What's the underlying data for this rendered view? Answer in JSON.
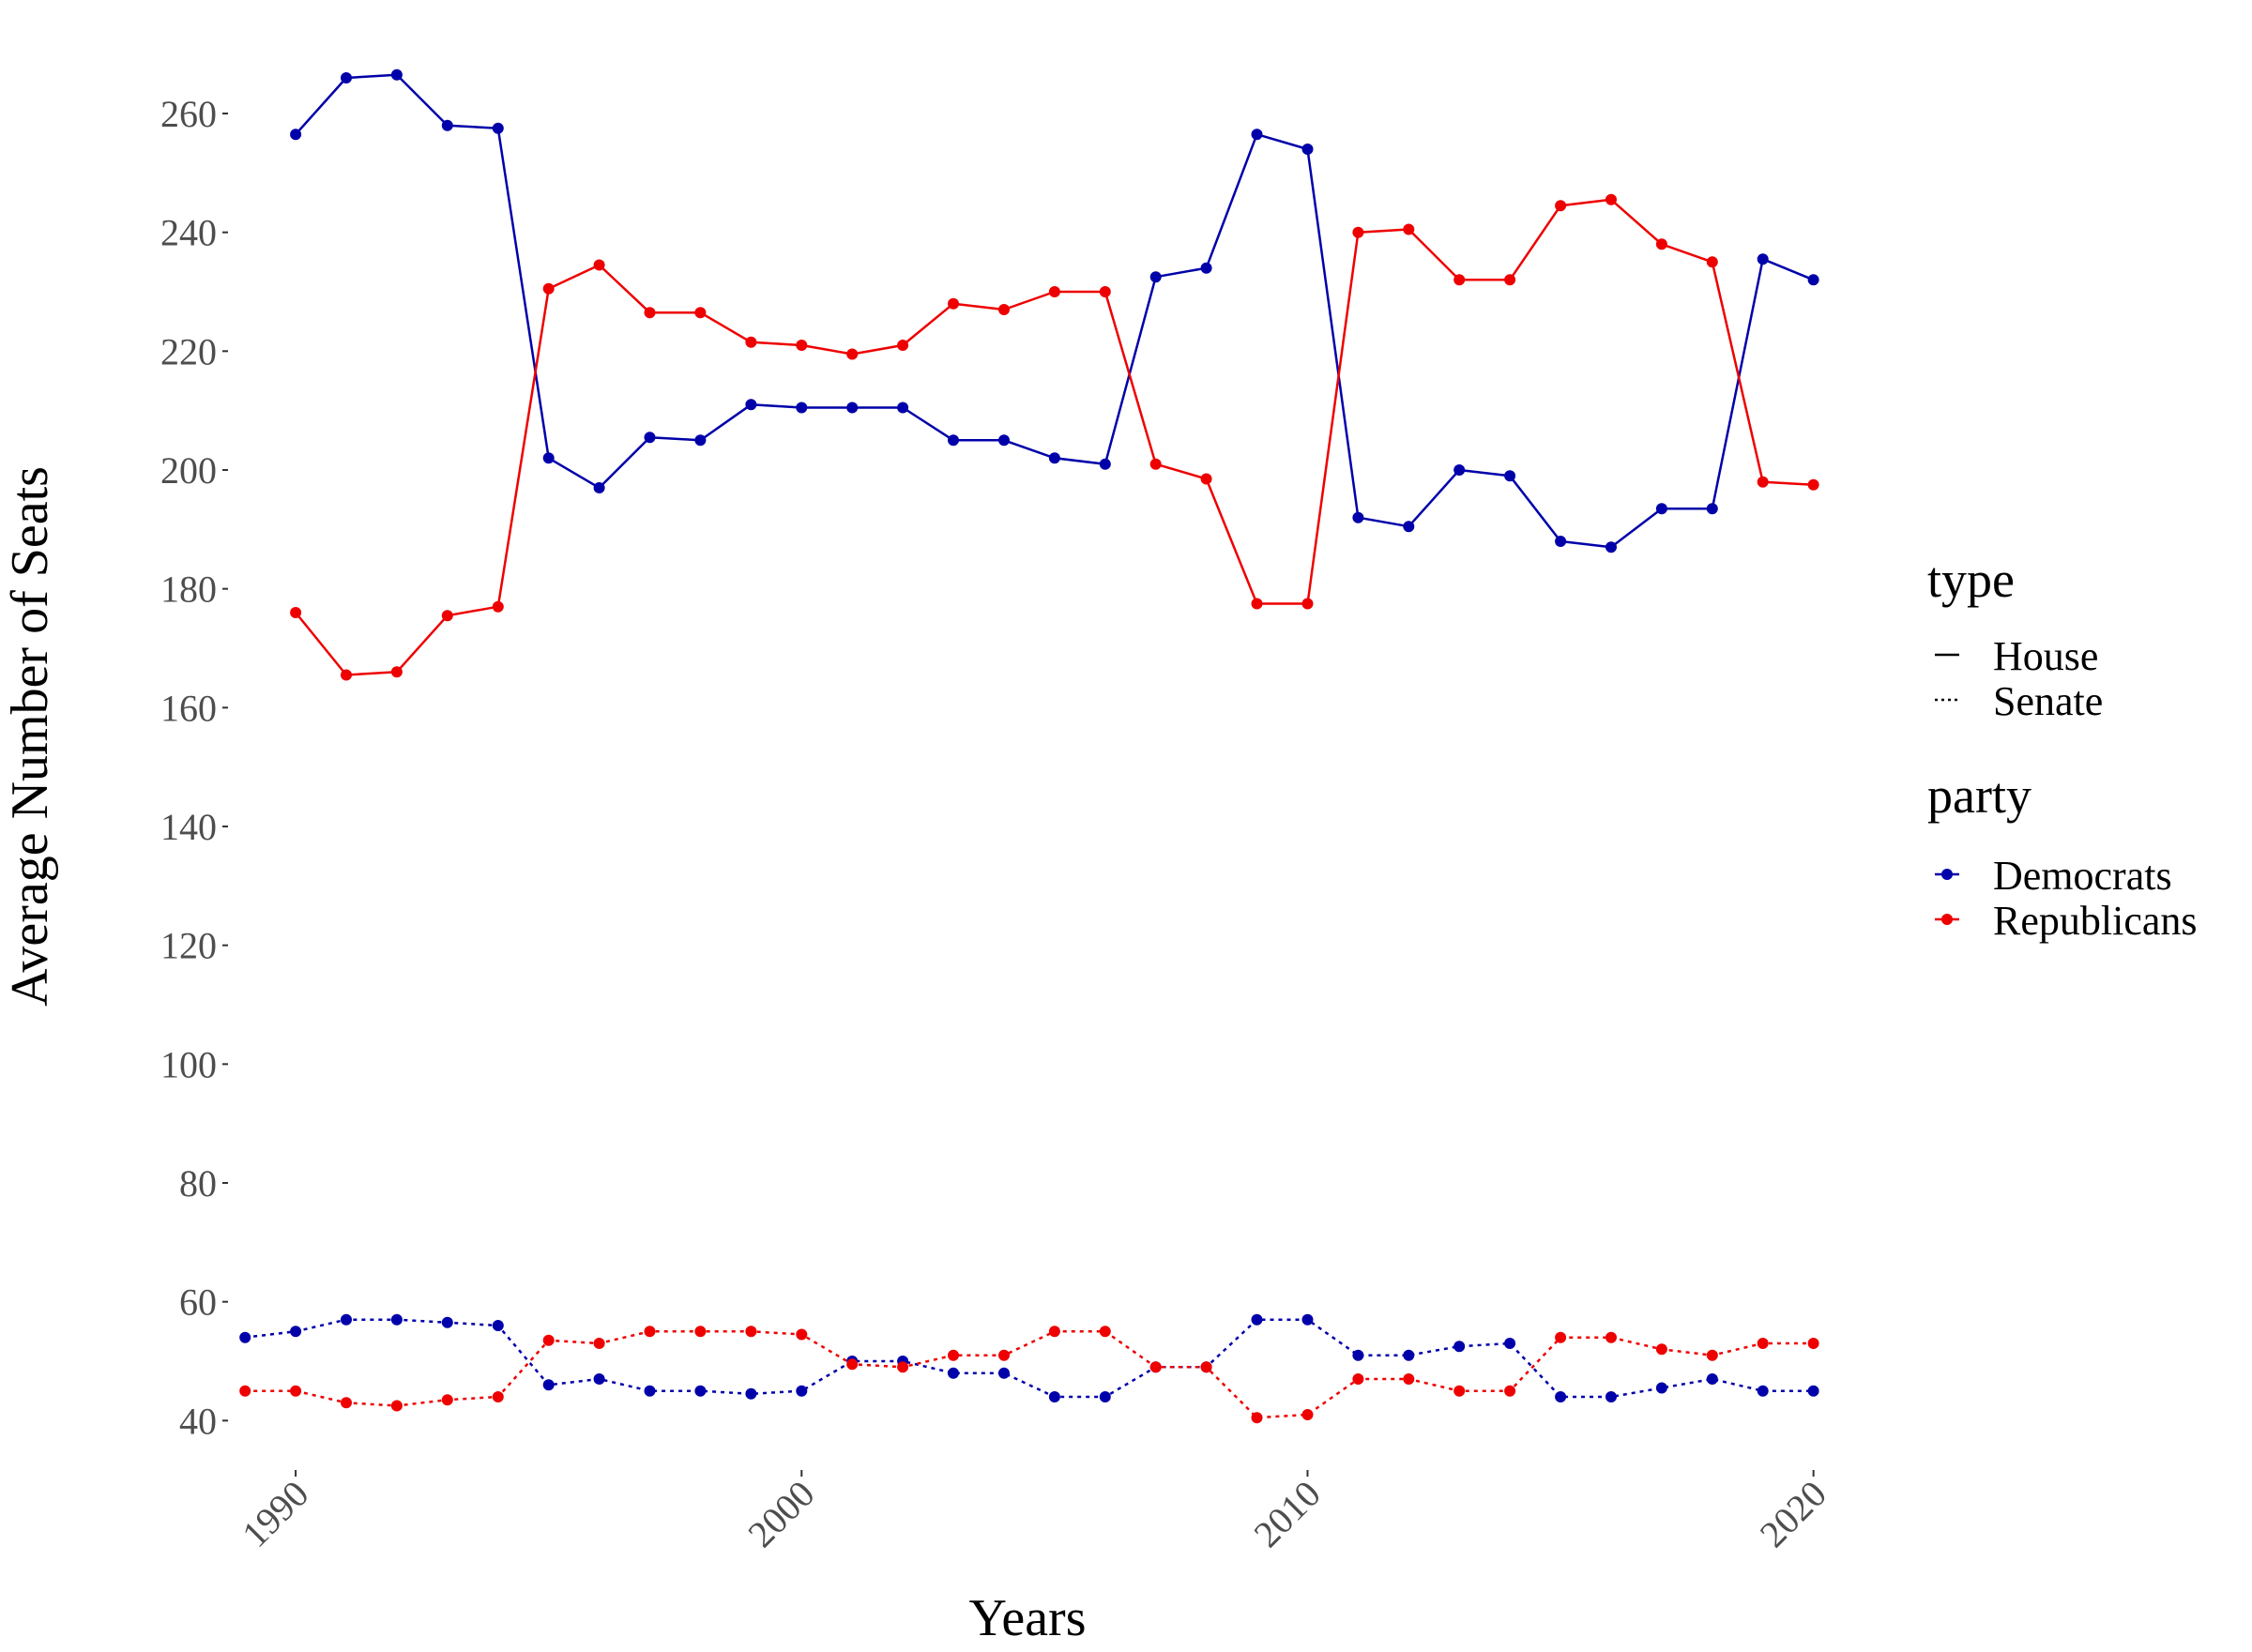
{
  "chart_data": {
    "type": "line",
    "title": "",
    "xlabel": "Years",
    "ylabel": "Average Number of Seats",
    "xlim": [
      1988.7,
      2020.6
    ],
    "ylim": [
      32,
      272
    ],
    "x_ticks": [
      1990,
      2000,
      2010,
      2020
    ],
    "y_ticks": [
      40,
      60,
      80,
      100,
      120,
      140,
      160,
      180,
      200,
      220,
      240,
      260
    ],
    "grid": false,
    "colors": {
      "Democrats": "#0000aa",
      "Republicans": "#ee0000"
    },
    "legend": {
      "placement": "right",
      "type_title": "type",
      "type_items": [
        {
          "label": "House",
          "line": "solid"
        },
        {
          "label": "Senate",
          "line": "dotted"
        }
      ],
      "party_title": "party",
      "party_items": [
        {
          "label": "Democrats",
          "color": "#0000aa"
        },
        {
          "label": "Republicans",
          "color": "#ee0000"
        }
      ]
    },
    "series": [
      {
        "party": "Democrats",
        "type": "House",
        "x": [
          1990,
          1991,
          1992,
          1993,
          1994,
          1995,
          1996,
          1997,
          1998,
          1999,
          2000,
          2001,
          2002,
          2003,
          2004,
          2005,
          2006,
          2007,
          2008,
          2009,
          2010,
          2011,
          2012,
          2013,
          2014,
          2015,
          2016,
          2017,
          2018,
          2019,
          2020
        ],
        "values": [
          256.5,
          266,
          266.5,
          258,
          257.5,
          202,
          197,
          205.5,
          205,
          211,
          210.5,
          210.5,
          210.5,
          205,
          205,
          202,
          201,
          232.5,
          234,
          256.5,
          254,
          192,
          190.5,
          200,
          199,
          188,
          187,
          193.5,
          193.5,
          235.5,
          232
        ]
      },
      {
        "party": "Republicans",
        "type": "House",
        "x": [
          1990,
          1991,
          1992,
          1993,
          1994,
          1995,
          1996,
          1997,
          1998,
          1999,
          2000,
          2001,
          2002,
          2003,
          2004,
          2005,
          2006,
          2007,
          2008,
          2009,
          2010,
          2011,
          2012,
          2013,
          2014,
          2015,
          2016,
          2017,
          2018,
          2019,
          2020
        ],
        "values": [
          176,
          165.5,
          166,
          175.5,
          177,
          230.5,
          234.5,
          226.5,
          226.5,
          221.5,
          221,
          219.5,
          221,
          228,
          227,
          230,
          230,
          201,
          198.5,
          177.5,
          177.5,
          240,
          240.5,
          232,
          232,
          244.5,
          245.5,
          238,
          235,
          198,
          197.5
        ]
      },
      {
        "party": "Democrats",
        "type": "Senate",
        "x": [
          1989,
          1990,
          1991,
          1992,
          1993,
          1994,
          1995,
          1996,
          1997,
          1998,
          1999,
          2000,
          2001,
          2002,
          2003,
          2004,
          2005,
          2006,
          2007,
          2008,
          2009,
          2010,
          2011,
          2012,
          2013,
          2014,
          2015,
          2016,
          2017,
          2018,
          2019,
          2020
        ],
        "values": [
          54,
          55,
          57,
          57,
          56.5,
          56,
          46,
          47,
          45,
          45,
          44.5,
          45,
          50,
          50,
          48,
          48,
          44,
          44,
          49,
          49,
          57,
          57,
          51,
          51,
          52.5,
          53,
          44,
          44,
          45.5,
          47,
          45,
          45
        ]
      },
      {
        "party": "Republicans",
        "type": "Senate",
        "x": [
          1989,
          1990,
          1991,
          1992,
          1993,
          1994,
          1995,
          1996,
          1997,
          1998,
          1999,
          2000,
          2001,
          2002,
          2003,
          2004,
          2005,
          2006,
          2007,
          2008,
          2009,
          2010,
          2011,
          2012,
          2013,
          2014,
          2015,
          2016,
          2017,
          2018,
          2019,
          2020
        ],
        "values": [
          45,
          45,
          43,
          42.5,
          43.5,
          44,
          53.5,
          53,
          55,
          55,
          55,
          54.5,
          49.5,
          49,
          51,
          51,
          55,
          55,
          49,
          49,
          40.5,
          41,
          47,
          47,
          45,
          45,
          54,
          54,
          52,
          51,
          53,
          53
        ]
      }
    ]
  }
}
